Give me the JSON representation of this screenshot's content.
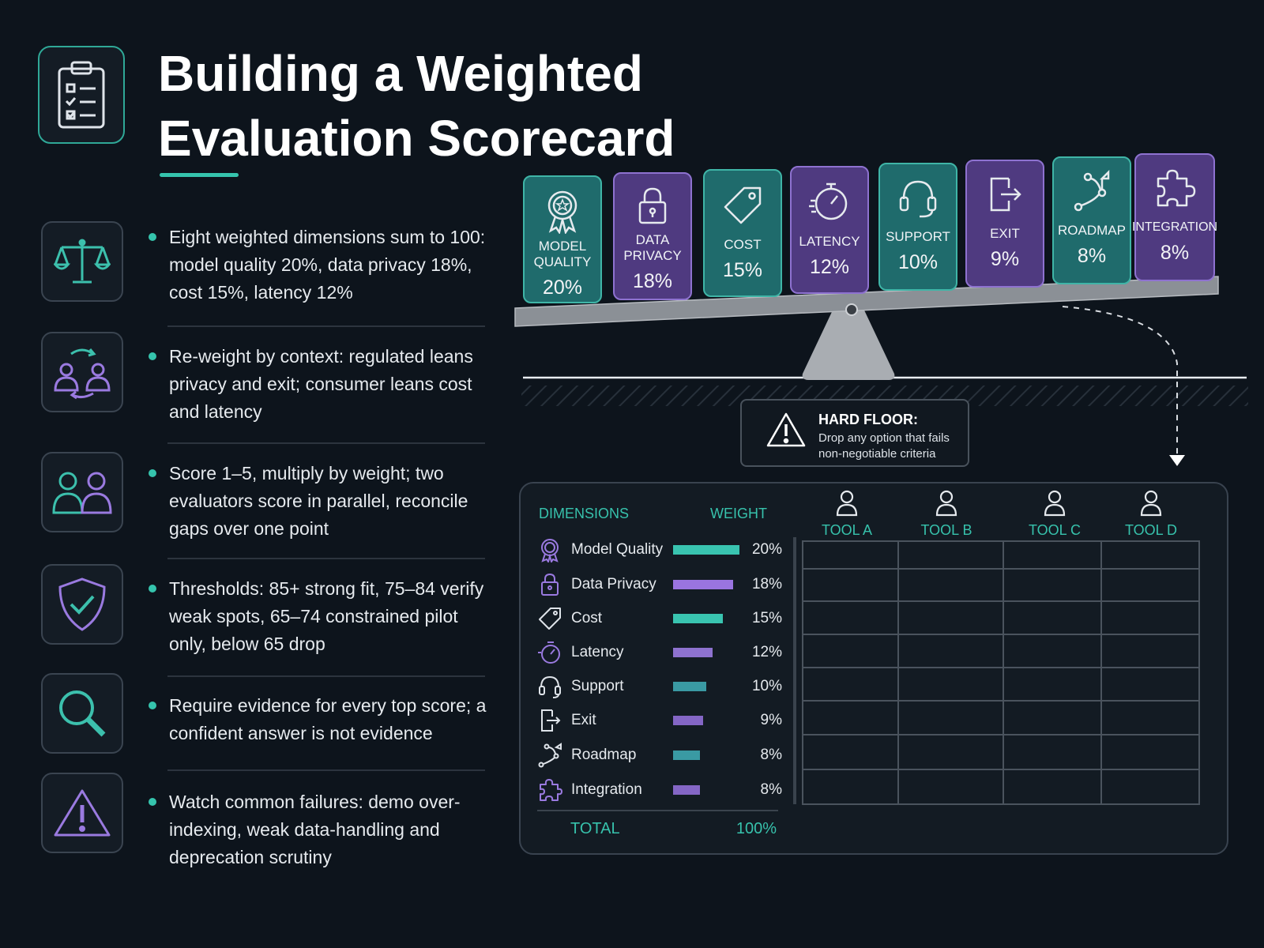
{
  "title": {
    "line1": "Building a Weighted",
    "line2": "Evaluation Scorecard"
  },
  "bullets": [
    {
      "icon": "scales-icon",
      "text": "Eight weighted dimensions sum to 100: model quality 20%, data privacy 18%, cost 15%, latency 12%"
    },
    {
      "icon": "people-swap-icon",
      "text": "Re-weight by context: regulated leans privacy and exit; consumer leans cost and latency"
    },
    {
      "icon": "two-people-icon",
      "text": "Score 1–5, multiply by weight; two evaluators score in parallel, reconcile gaps over one point"
    },
    {
      "icon": "shield-check-icon",
      "text": "Thresholds: 85+ strong fit, 75–84 verify weak spots, 65–74 constrained pilot only, below 65 drop"
    },
    {
      "icon": "magnifier-icon",
      "text": "Require evidence for every top score; a confident answer is not evidence"
    },
    {
      "icon": "warning-icon",
      "text": "Watch common failures: demo over-indexing, weak data-handling and deprecation scrutiny"
    }
  ],
  "balance_cards": [
    {
      "label": "MODEL QUALITY",
      "value": "20%",
      "color": "teal",
      "icon": "award-icon"
    },
    {
      "label": "DATA PRIVACY",
      "value": "18%",
      "color": "purple",
      "icon": "lock-icon"
    },
    {
      "label": "COST",
      "value": "15%",
      "color": "teal",
      "icon": "tag-icon"
    },
    {
      "label": "LATENCY",
      "value": "12%",
      "color": "purple",
      "icon": "stopwatch-icon"
    },
    {
      "label": "SUPPORT",
      "value": "10%",
      "color": "teal",
      "icon": "headset-icon"
    },
    {
      "label": "EXIT",
      "value": "9%",
      "color": "purple",
      "icon": "exit-icon"
    },
    {
      "label": "ROADMAP",
      "value": "8%",
      "color": "teal",
      "icon": "roadmap-icon"
    },
    {
      "label": "INTEGRATION",
      "value": "8%",
      "color": "purple",
      "icon": "puzzle-icon"
    }
  ],
  "hard_floor": {
    "title": "HARD FLOOR:",
    "line1": "Drop any option that fails",
    "line2": "non-negotiable criteria"
  },
  "table": {
    "col_dimensions": "DIMENSIONS",
    "col_weight": "WEIGHT",
    "tools": [
      "TOOL A",
      "TOOL B",
      "TOOL C",
      "TOOL D"
    ],
    "rows": [
      {
        "name": "Model Quality",
        "weight": "20%",
        "value": 20,
        "color": "#39c4b0",
        "icon": "award-icon"
      },
      {
        "name": "Data Privacy",
        "weight": "18%",
        "value": 18,
        "color": "#9a74e0",
        "icon": "lock-icon"
      },
      {
        "name": "Cost",
        "weight": "15%",
        "value": 15,
        "color": "#39c4b0",
        "icon": "tag-icon"
      },
      {
        "name": "Latency",
        "weight": "12%",
        "value": 12,
        "color": "#8e72cf",
        "icon": "stopwatch-icon"
      },
      {
        "name": "Support",
        "weight": "10%",
        "value": 10,
        "color": "#3a9aa3",
        "icon": "headset-icon"
      },
      {
        "name": "Exit",
        "weight": "9%",
        "value": 9,
        "color": "#8466c5",
        "icon": "exit-icon"
      },
      {
        "name": "Roadmap",
        "weight": "8%",
        "value": 8,
        "color": "#3a9aa3",
        "icon": "roadmap-icon"
      },
      {
        "name": "Integration",
        "weight": "8%",
        "value": 8,
        "color": "#8466c5",
        "icon": "puzzle-icon"
      }
    ],
    "total_label": "TOTAL",
    "total_value": "100%"
  },
  "colors": {
    "teal": "#35c4ad",
    "purple": "#9a7ae0",
    "background": "#0d141c"
  }
}
